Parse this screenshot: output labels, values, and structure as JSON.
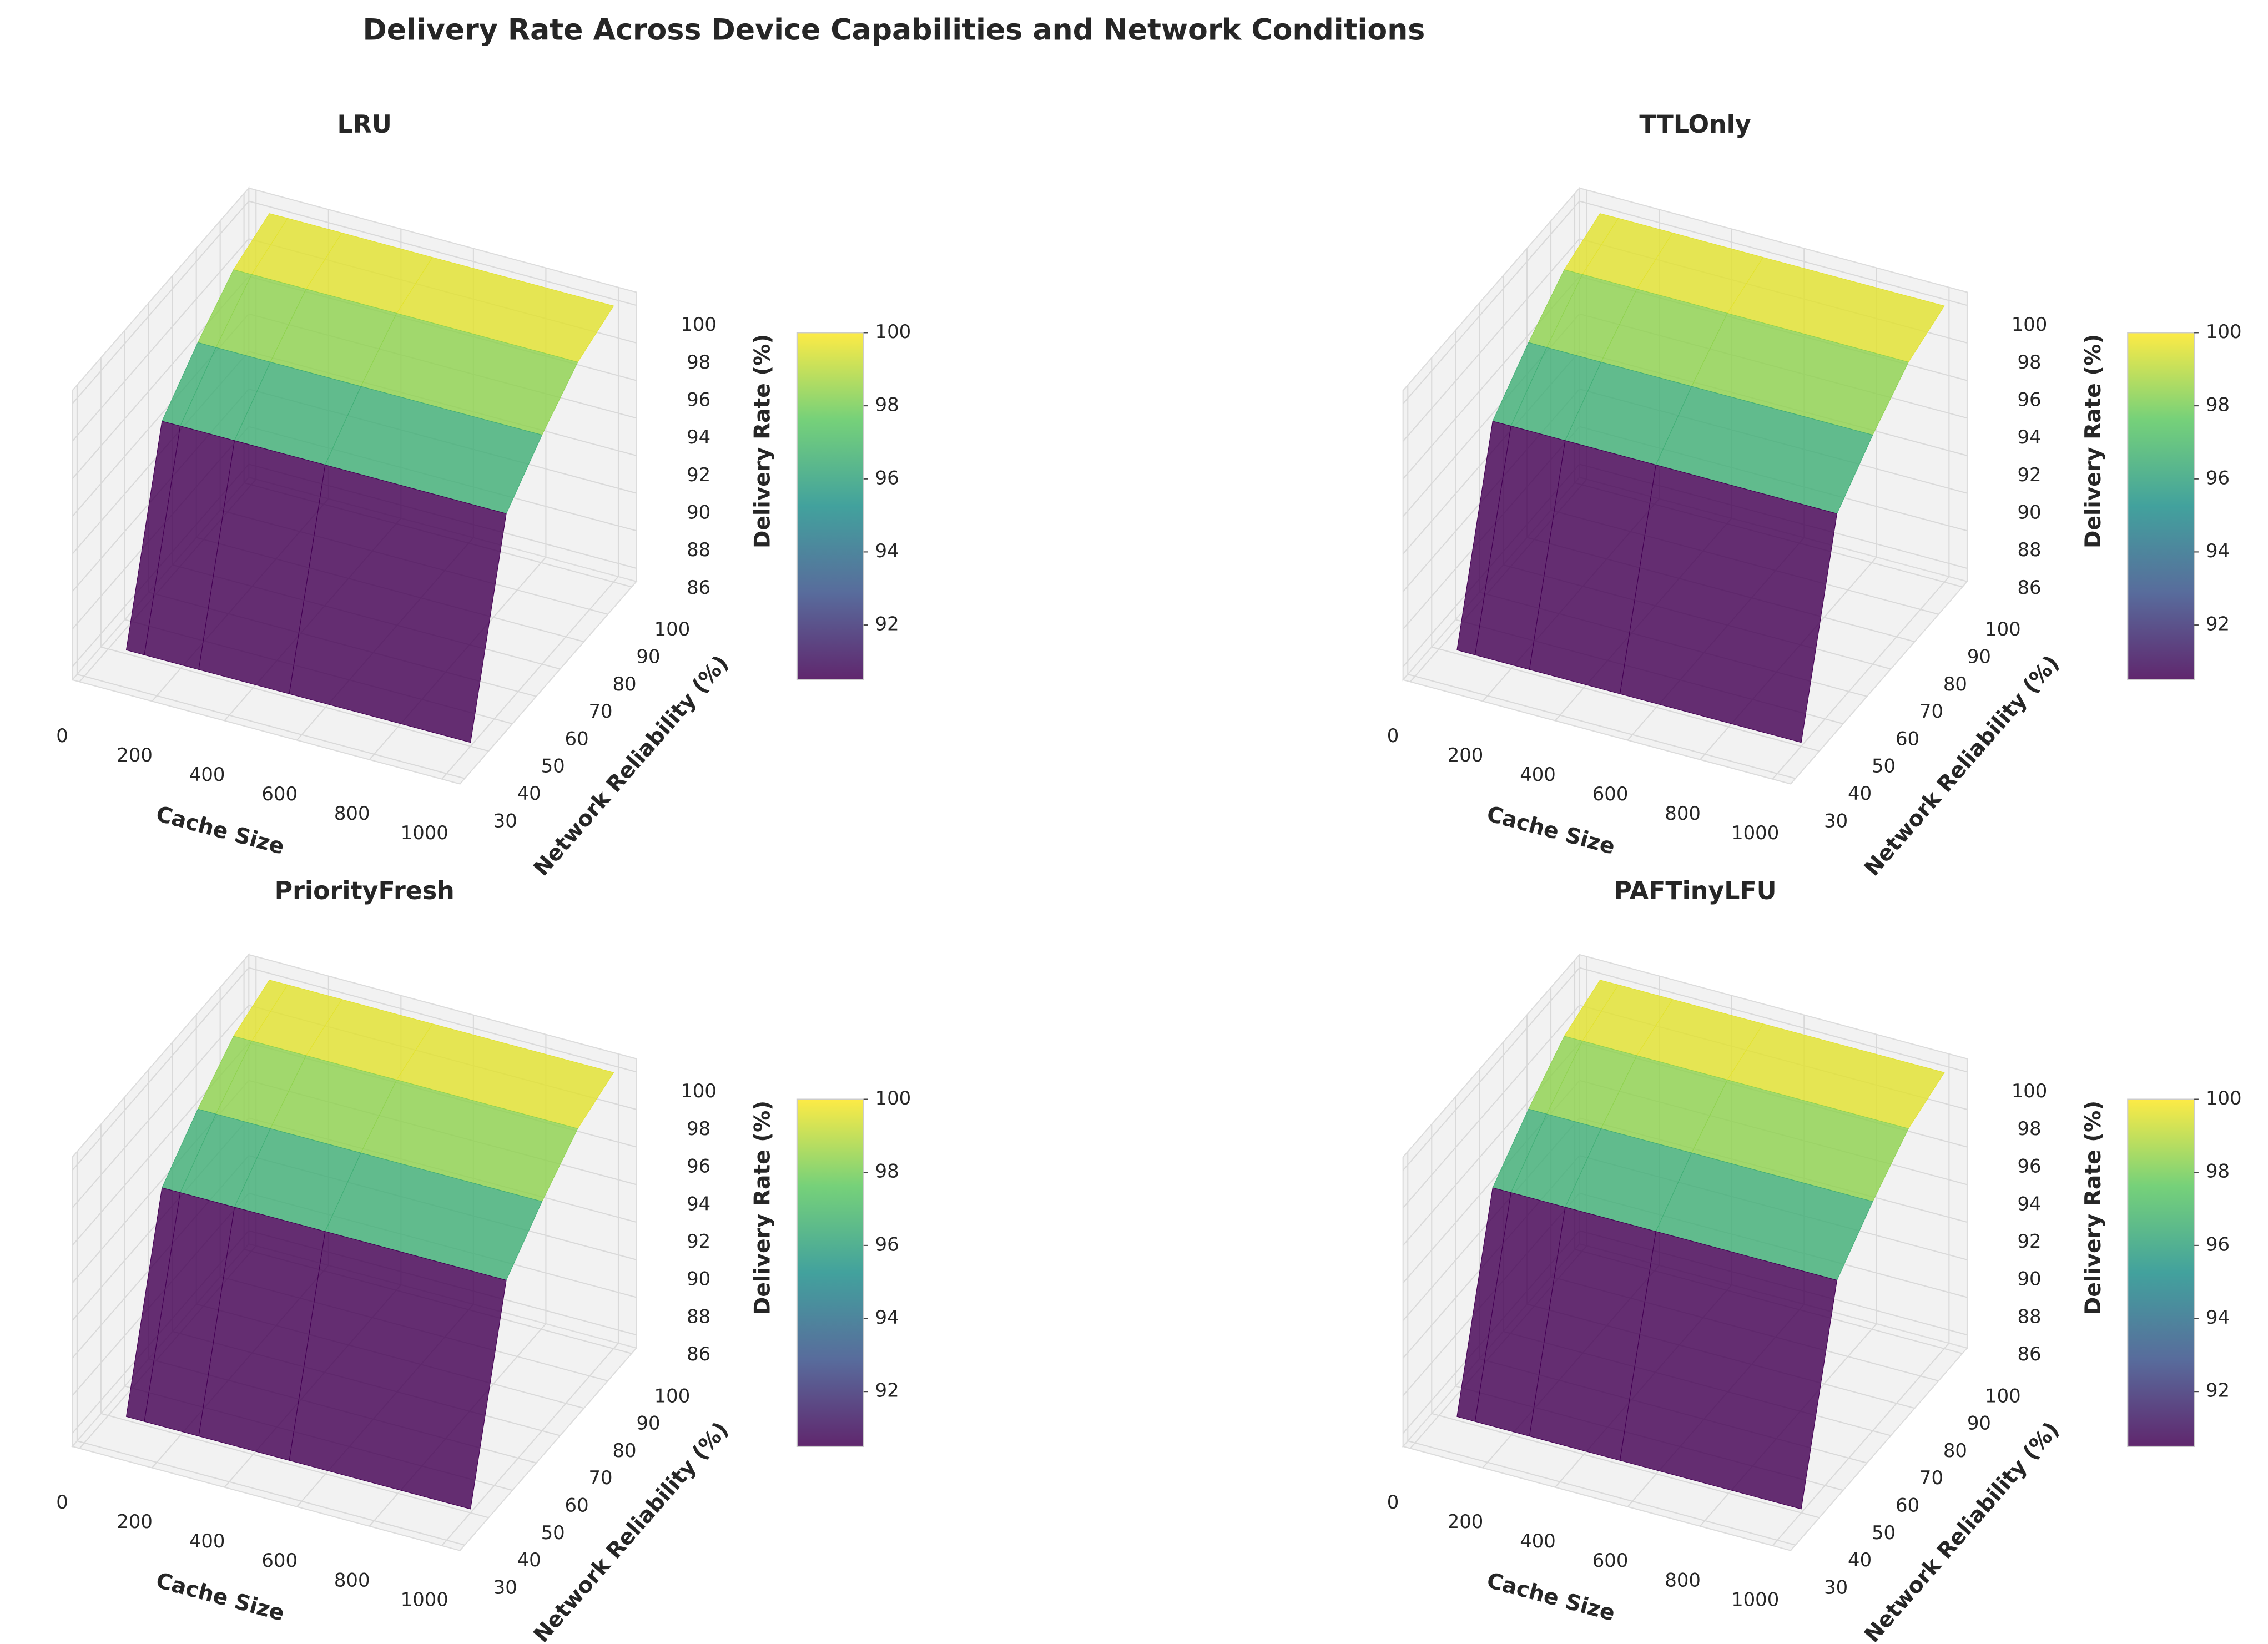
{
  "title": "Delivery Rate Across Device Capabilities and Network Conditions",
  "chart_data": [
    {
      "type": "surface",
      "title": "LRU",
      "x_label": "Cache Size",
      "y_label": "Network Reliability (%)",
      "z_label": "Delivery Rate (%)",
      "x": [
        50,
        100,
        250,
        500,
        1000
      ],
      "y": [
        40,
        55,
        70,
        85,
        100
      ],
      "z": [
        [
          85.5,
          85.5,
          85.5,
          85.5,
          85.5
        ],
        [
          95.5,
          95.5,
          95.5,
          95.5,
          95.5
        ],
        [
          97.5,
          97.5,
          97.5,
          97.5,
          97.5
        ],
        [
          99.2,
          99.2,
          99.2,
          99.2,
          99.2
        ],
        [
          100,
          100,
          100,
          100,
          100
        ]
      ],
      "xlim": [
        -20,
        1050
      ],
      "ylim": [
        28,
        102
      ],
      "zlim": [
        85.3,
        100.7
      ],
      "xticks": [
        0,
        200,
        400,
        600,
        800,
        1000
      ],
      "yticks": [
        30,
        40,
        50,
        60,
        70,
        80,
        90,
        100
      ],
      "zticks": [
        86,
        88,
        90,
        92,
        94,
        96,
        98,
        100
      ],
      "colormap": "viridis",
      "clim": [
        90.5,
        100
      ],
      "cticks": [
        92,
        94,
        96,
        98,
        100
      ]
    },
    {
      "type": "surface",
      "title": "TTLOnly",
      "x_label": "Cache Size",
      "y_label": "Network Reliability (%)",
      "z_label": "Delivery Rate (%)",
      "x": [
        50,
        100,
        250,
        500,
        1000
      ],
      "y": [
        40,
        55,
        70,
        85,
        100
      ],
      "z": [
        [
          85.5,
          85.5,
          85.5,
          85.5,
          85.5
        ],
        [
          95.5,
          95.5,
          95.5,
          95.5,
          95.5
        ],
        [
          97.5,
          97.5,
          97.5,
          97.5,
          97.5
        ],
        [
          99.2,
          99.2,
          99.2,
          99.2,
          99.2
        ],
        [
          100,
          100,
          100,
          100,
          100
        ]
      ],
      "xlim": [
        -20,
        1050
      ],
      "ylim": [
        28,
        102
      ],
      "zlim": [
        85.3,
        100.7
      ],
      "xticks": [
        0,
        200,
        400,
        600,
        800,
        1000
      ],
      "yticks": [
        30,
        40,
        50,
        60,
        70,
        80,
        90,
        100
      ],
      "zticks": [
        86,
        88,
        90,
        92,
        94,
        96,
        98,
        100
      ],
      "colormap": "viridis",
      "clim": [
        90.5,
        100
      ],
      "cticks": [
        92,
        94,
        96,
        98,
        100
      ]
    },
    {
      "type": "surface",
      "title": "PriorityFresh",
      "x_label": "Cache Size",
      "y_label": "Network Reliability (%)",
      "z_label": "Delivery Rate (%)",
      "x": [
        50,
        100,
        250,
        500,
        1000
      ],
      "y": [
        40,
        55,
        70,
        85,
        100
      ],
      "z": [
        [
          85.5,
          85.5,
          85.5,
          85.5,
          85.5
        ],
        [
          95.5,
          95.5,
          95.5,
          95.5,
          95.5
        ],
        [
          97.5,
          97.5,
          97.5,
          97.5,
          97.5
        ],
        [
          99.2,
          99.2,
          99.2,
          99.2,
          99.2
        ],
        [
          100,
          100,
          100,
          100,
          100
        ]
      ],
      "xlim": [
        -20,
        1050
      ],
      "ylim": [
        28,
        102
      ],
      "zlim": [
        85.3,
        100.7
      ],
      "xticks": [
        0,
        200,
        400,
        600,
        800,
        1000
      ],
      "yticks": [
        30,
        40,
        50,
        60,
        70,
        80,
        90,
        100
      ],
      "zticks": [
        86,
        88,
        90,
        92,
        94,
        96,
        98,
        100
      ],
      "colormap": "viridis",
      "clim": [
        90.5,
        100
      ],
      "cticks": [
        92,
        94,
        96,
        98,
        100
      ]
    },
    {
      "type": "surface",
      "title": "PAFTinyLFU",
      "x_label": "Cache Size",
      "y_label": "Network Reliability (%)",
      "z_label": "Delivery Rate (%)",
      "x": [
        50,
        100,
        250,
        500,
        1000
      ],
      "y": [
        40,
        55,
        70,
        85,
        100
      ],
      "z": [
        [
          85.5,
          85.5,
          85.5,
          85.5,
          85.5
        ],
        [
          95.5,
          95.5,
          95.5,
          95.5,
          95.5
        ],
        [
          97.5,
          97.5,
          97.5,
          97.5,
          97.5
        ],
        [
          99.2,
          99.2,
          99.2,
          99.2,
          99.2
        ],
        [
          100,
          100,
          100,
          100,
          100
        ]
      ],
      "xlim": [
        -20,
        1050
      ],
      "ylim": [
        28,
        102
      ],
      "zlim": [
        85.3,
        100.7
      ],
      "xticks": [
        0,
        200,
        400,
        600,
        800,
        1000
      ],
      "yticks": [
        30,
        40,
        50,
        60,
        70,
        80,
        90,
        100
      ],
      "zticks": [
        86,
        88,
        90,
        92,
        94,
        96,
        98,
        100
      ],
      "colormap": "viridis",
      "clim": [
        90.5,
        100
      ],
      "cticks": [
        92,
        94,
        96,
        98,
        100
      ]
    }
  ]
}
